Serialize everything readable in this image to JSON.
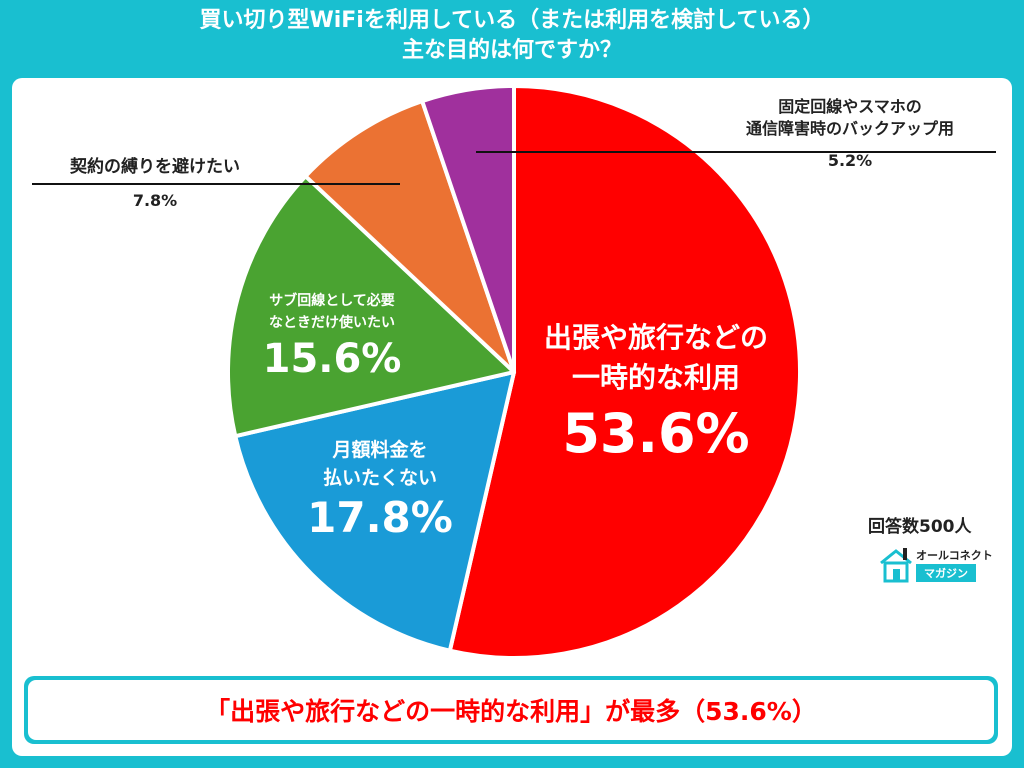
{
  "title": {
    "line1": "買い切り型WiFiを利用している（または利用を検討している）",
    "line2": "主な目的は何ですか？"
  },
  "chart_data": {
    "type": "pie",
    "slices": [
      {
        "label_line1": "出張や旅行などの",
        "label_line2": "一時的な利用",
        "value": 53.6,
        "display": "53.6%",
        "color": "#ff0000"
      },
      {
        "label_line1": "月額料金を",
        "label_line2": "払いたくない",
        "value": 17.8,
        "display": "17.8%",
        "color": "#1a9bd7"
      },
      {
        "label_line1": "サブ回線として必要",
        "label_line2": "なときだけ使いたい",
        "value": 15.6,
        "display": "15.6%",
        "color": "#4aa331"
      },
      {
        "label_line1": "契約の縛りを避けたい",
        "label_line2": "",
        "value": 7.8,
        "display": "7.8%",
        "color": "#eb7233"
      },
      {
        "label_line1": "固定回線やスマホの",
        "label_line2": "通信障害時のバックアップ用",
        "value": 5.2,
        "display": "5.2%",
        "color": "#a0309d"
      }
    ],
    "start_angle_deg": 0,
    "direction": "clockwise"
  },
  "respondents": "回答数500人",
  "logo": {
    "top": "オールコネクト",
    "bottom": "マガジン"
  },
  "banner": "「出張や旅行などの一時的な利用」が最多（53.6%）",
  "colors": {
    "background": "#19bfd0",
    "accent": "#ff0000"
  }
}
